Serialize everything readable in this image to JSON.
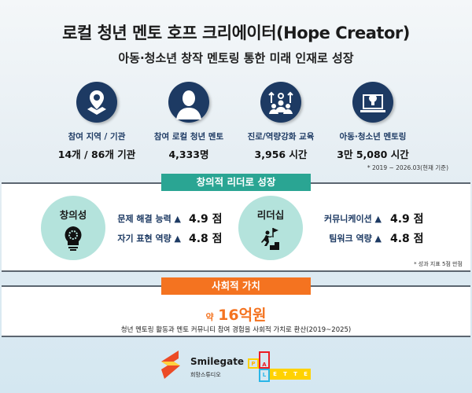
{
  "header": {
    "title": "로컬 청년 멘토 호프 크리에이터(Hope Creator)",
    "subtitle": "아동·청소년 창작 멘토링 통한 미래 인재로 성장"
  },
  "stats": [
    {
      "icon": "location-pin-icon",
      "label": "참여 지역 / 기관",
      "value": "14개 / 86개 기관"
    },
    {
      "icon": "person-icon",
      "label": "참여 로컬 청년 멘토",
      "value": "4,333명"
    },
    {
      "icon": "team-growth-icon",
      "label": "진로/역량강화 교육",
      "value": "3,956 시간"
    },
    {
      "icon": "laptop-lightbulb-icon",
      "label": "아동·청소년 멘토링",
      "value": "3만 5,080 시간"
    }
  ],
  "stats_note": "* 2019 ~ 2026.03(현재 기준)",
  "growth": {
    "title": "창의적 리더로 성장",
    "color": "#2aa593",
    "groups": [
      {
        "name": "창의성",
        "icon": "lightbulb-gear-icon",
        "items": [
          {
            "label": "문제 해결 능력 ▲",
            "score": "4.9 점"
          },
          {
            "label": "자기 표현 역량 ▲",
            "score": "4.8 점"
          }
        ]
      },
      {
        "name": "리더십",
        "icon": "climbing-flag-icon",
        "items": [
          {
            "label": "커뮤니케이션 ▲",
            "score": "4.9 점"
          },
          {
            "label": "팀워크 역량 ▲",
            "score": "4.8 점"
          }
        ]
      }
    ],
    "note": "* 성과 지표 5점 만점"
  },
  "social": {
    "title": "사회적 가치",
    "color": "#f47320",
    "prefix": "약",
    "value": "16억원",
    "desc": "청년 멘토링 활동과 멘토 커뮤니티 참여 경험을 사회적 가치로 환산(2019~2025)"
  },
  "logos": {
    "smilegate": "Smilegate",
    "smilegate_sub": "희망스튜디오",
    "palette": [
      "P",
      "A",
      "L",
      "E",
      "T",
      "T",
      "E"
    ]
  }
}
